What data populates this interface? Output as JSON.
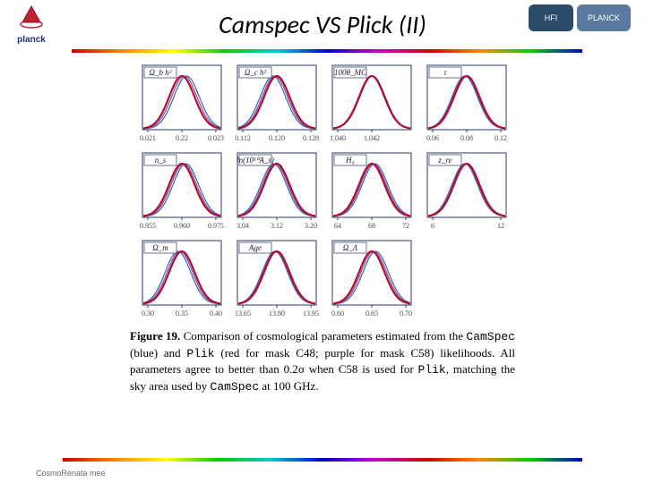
{
  "title": "Camspec VS Plick (II)",
  "footer": "CosmoRenata mee",
  "logo_left_text": "planck",
  "logo_right": [
    {
      "label": "HFI",
      "bg": "#2a4a6a",
      "w": 50
    },
    {
      "label": "PLANCK",
      "bg": "#5a7aa0",
      "w": 60
    }
  ],
  "caption_prefix": "Figure 19.",
  "caption_body": " Comparison of cosmological parameters estimated from the ",
  "caption_camspec": "CamSpec",
  "caption_mid1": " (blue) and ",
  "caption_plik": "Plik",
  "caption_mid2": " (red for mask C48; purple for mask C58) likelihoods. All parameters agree to better than 0.2σ when C58 is used for ",
  "caption_plik2": "Plik",
  "caption_mid3": ", matching the sky area used by ",
  "caption_camspec2": "CamSpec",
  "caption_end": " at 100 GHz.",
  "style": {
    "frame_color": "#2a3a6a",
    "red": "#b01030",
    "blue": "#4060b0",
    "purple": "#8050a0",
    "line_w_red": 2.2,
    "line_w_other": 1.2,
    "tick_fontsize": 8,
    "label_fontsize": 9
  },
  "panels": [
    {
      "label": "Ω_b h²",
      "ticks": [
        "0.021",
        "0.22",
        "0.023"
      ],
      "shift_blue": 0.12,
      "shift_purple": 0.06
    },
    {
      "label": "Ω_c h²",
      "ticks": [
        "0.112",
        "0.120",
        "0.128"
      ],
      "shift_blue": -0.1,
      "shift_purple": -0.05
    },
    {
      "label": "100θ_MC",
      "ticks": [
        "1.040",
        "1.042",
        ""
      ],
      "shift_blue": 0.02,
      "shift_purple": 0.01
    },
    {
      "label": "τ",
      "ticks": [
        "0.06",
        "0.08",
        "0.12"
      ],
      "shift_blue": -0.05,
      "shift_purple": -0.03
    },
    {
      "label": "n_s",
      "ticks": [
        "0.955",
        "0.960",
        "0.975"
      ],
      "shift_blue": 0.1,
      "shift_purple": 0.05
    },
    {
      "label": "ln(10¹⁰A_s)",
      "ticks": [
        "3.04",
        "3.12",
        "3.20"
      ],
      "shift_blue": -0.08,
      "shift_purple": -0.04
    },
    {
      "label": "H₀",
      "ticks": [
        "64",
        "68",
        "72"
      ],
      "shift_blue": 0.08,
      "shift_purple": 0.04
    },
    {
      "label": "z_re",
      "ticks": [
        "6",
        "",
        "12"
      ],
      "shift_blue": -0.05,
      "shift_purple": -0.03
    },
    {
      "label": "Ω_m",
      "ticks": [
        "0.30",
        "0.35",
        "0.40"
      ],
      "shift_blue": -0.1,
      "shift_purple": -0.05
    },
    {
      "label": "Age",
      "ticks": [
        "13.65",
        "13.80",
        "13.95"
      ],
      "shift_blue": -0.05,
      "shift_purple": -0.03
    },
    {
      "label": "Ω_Λ",
      "ticks": [
        "0.60",
        "0.65",
        "0.70"
      ],
      "shift_blue": 0.1,
      "shift_purple": 0.05
    },
    null
  ]
}
